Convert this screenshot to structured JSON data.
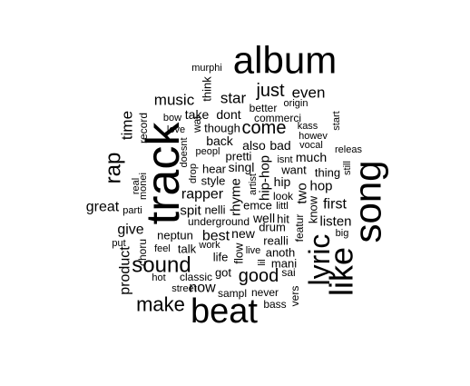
{
  "words": [
    {
      "text": "album",
      "v": 72
    },
    {
      "text": "murphi",
      "v": 18
    },
    {
      "text": "just",
      "v": 34
    },
    {
      "text": "even",
      "v": 30
    },
    {
      "text": "music",
      "v": 30
    },
    {
      "text": "star",
      "v": 30
    },
    {
      "text": "think",
      "v": 22
    },
    {
      "text": "take",
      "v": 26
    },
    {
      "text": "dont",
      "v": 26
    },
    {
      "text": "better",
      "v": 22
    },
    {
      "text": "origin",
      "v": 20
    },
    {
      "text": "bow",
      "v": 18
    },
    {
      "text": "wai",
      "v": 20
    },
    {
      "text": "commerci",
      "v": 20
    },
    {
      "text": "time",
      "v": 28
    },
    {
      "text": "record",
      "v": 20
    },
    {
      "text": "love",
      "v": 18
    },
    {
      "text": "though",
      "v": 22
    },
    {
      "text": "come",
      "v": 34
    },
    {
      "text": "kass",
      "v": 18
    },
    {
      "text": "start",
      "v": 20
    },
    {
      "text": "howev",
      "v": 18
    },
    {
      "text": "back",
      "v": 26
    },
    {
      "text": "vocal",
      "v": 18
    },
    {
      "text": "peopl",
      "v": 20
    },
    {
      "text": "also",
      "v": 26
    },
    {
      "text": "bad",
      "v": 26
    },
    {
      "text": "much",
      "v": 26
    },
    {
      "text": "releas",
      "v": 18
    },
    {
      "text": "pretti",
      "v": 22
    },
    {
      "text": "isnt",
      "v": 18
    },
    {
      "text": "doesnt",
      "v": 18
    },
    {
      "text": "singl",
      "v": 24
    },
    {
      "text": "track",
      "v": 100
    },
    {
      "text": "rap",
      "v": 40
    },
    {
      "text": "hear",
      "v": 22
    },
    {
      "text": "want",
      "v": 22
    },
    {
      "text": "thing",
      "v": 22
    },
    {
      "text": "style",
      "v": 22
    },
    {
      "text": "artist",
      "v": 18
    },
    {
      "text": "hip-hop",
      "v": 26
    },
    {
      "text": "hip",
      "v": 24
    },
    {
      "text": "drop",
      "v": 18
    },
    {
      "text": "real",
      "v": 18
    },
    {
      "text": "monei",
      "v": 18
    },
    {
      "text": "song",
      "v": 72
    },
    {
      "text": "still",
      "v": 18
    },
    {
      "text": "hop",
      "v": 26
    },
    {
      "text": "rapper",
      "v": 28
    },
    {
      "text": "rhyme",
      "v": 26
    },
    {
      "text": "nelli",
      "v": 22
    },
    {
      "text": "look",
      "v": 20
    },
    {
      "text": "two",
      "v": 26
    },
    {
      "text": "great",
      "v": 28
    },
    {
      "text": "parti",
      "v": 18
    },
    {
      "text": "spit",
      "v": 26
    },
    {
      "text": "emce",
      "v": 22
    },
    {
      "text": "littl",
      "v": 18
    },
    {
      "text": "know",
      "v": 22
    },
    {
      "text": "first",
      "v": 28
    },
    {
      "text": "underground",
      "v": 20
    },
    {
      "text": "well",
      "v": 24
    },
    {
      "text": "hit",
      "v": 22
    },
    {
      "text": "listen",
      "v": 26
    },
    {
      "text": "give",
      "v": 28
    },
    {
      "text": "drum",
      "v": 22
    },
    {
      "text": "featur",
      "v": 20
    },
    {
      "text": "big",
      "v": 18
    },
    {
      "text": "neptun",
      "v": 22
    },
    {
      "text": "best",
      "v": 30
    },
    {
      "text": "new",
      "v": 26
    },
    {
      "text": "realli",
      "v": 22
    },
    {
      "text": "lyric",
      "v": 52
    },
    {
      "text": "put",
      "v": 18
    },
    {
      "text": "feel",
      "v": 18
    },
    {
      "text": "talk",
      "v": 22
    },
    {
      "text": "work",
      "v": 18
    },
    {
      "text": "life",
      "v": 22
    },
    {
      "text": "flow",
      "v": 22
    },
    {
      "text": "live",
      "v": 18
    },
    {
      "text": "anoth",
      "v": 22
    },
    {
      "text": "choru",
      "v": 20
    },
    {
      "text": "sound",
      "v": 40
    },
    {
      "text": "lil",
      "v": 18
    },
    {
      "text": "mani",
      "v": 22
    },
    {
      "text": "like",
      "v": 60
    },
    {
      "text": "product",
      "v": 26
    },
    {
      "text": "got",
      "v": 22
    },
    {
      "text": "good",
      "v": 34
    },
    {
      "text": "hot",
      "v": 18
    },
    {
      "text": "classic",
      "v": 20
    },
    {
      "text": "sai",
      "v": 20
    },
    {
      "text": "now",
      "v": 26
    },
    {
      "text": "street",
      "v": 18
    },
    {
      "text": "make",
      "v": 36
    },
    {
      "text": "sampl",
      "v": 20
    },
    {
      "text": "never",
      "v": 20
    },
    {
      "text": "vers",
      "v": 20
    },
    {
      "text": "bass",
      "v": 20
    },
    {
      "text": "beat",
      "v": 66
    }
  ]
}
